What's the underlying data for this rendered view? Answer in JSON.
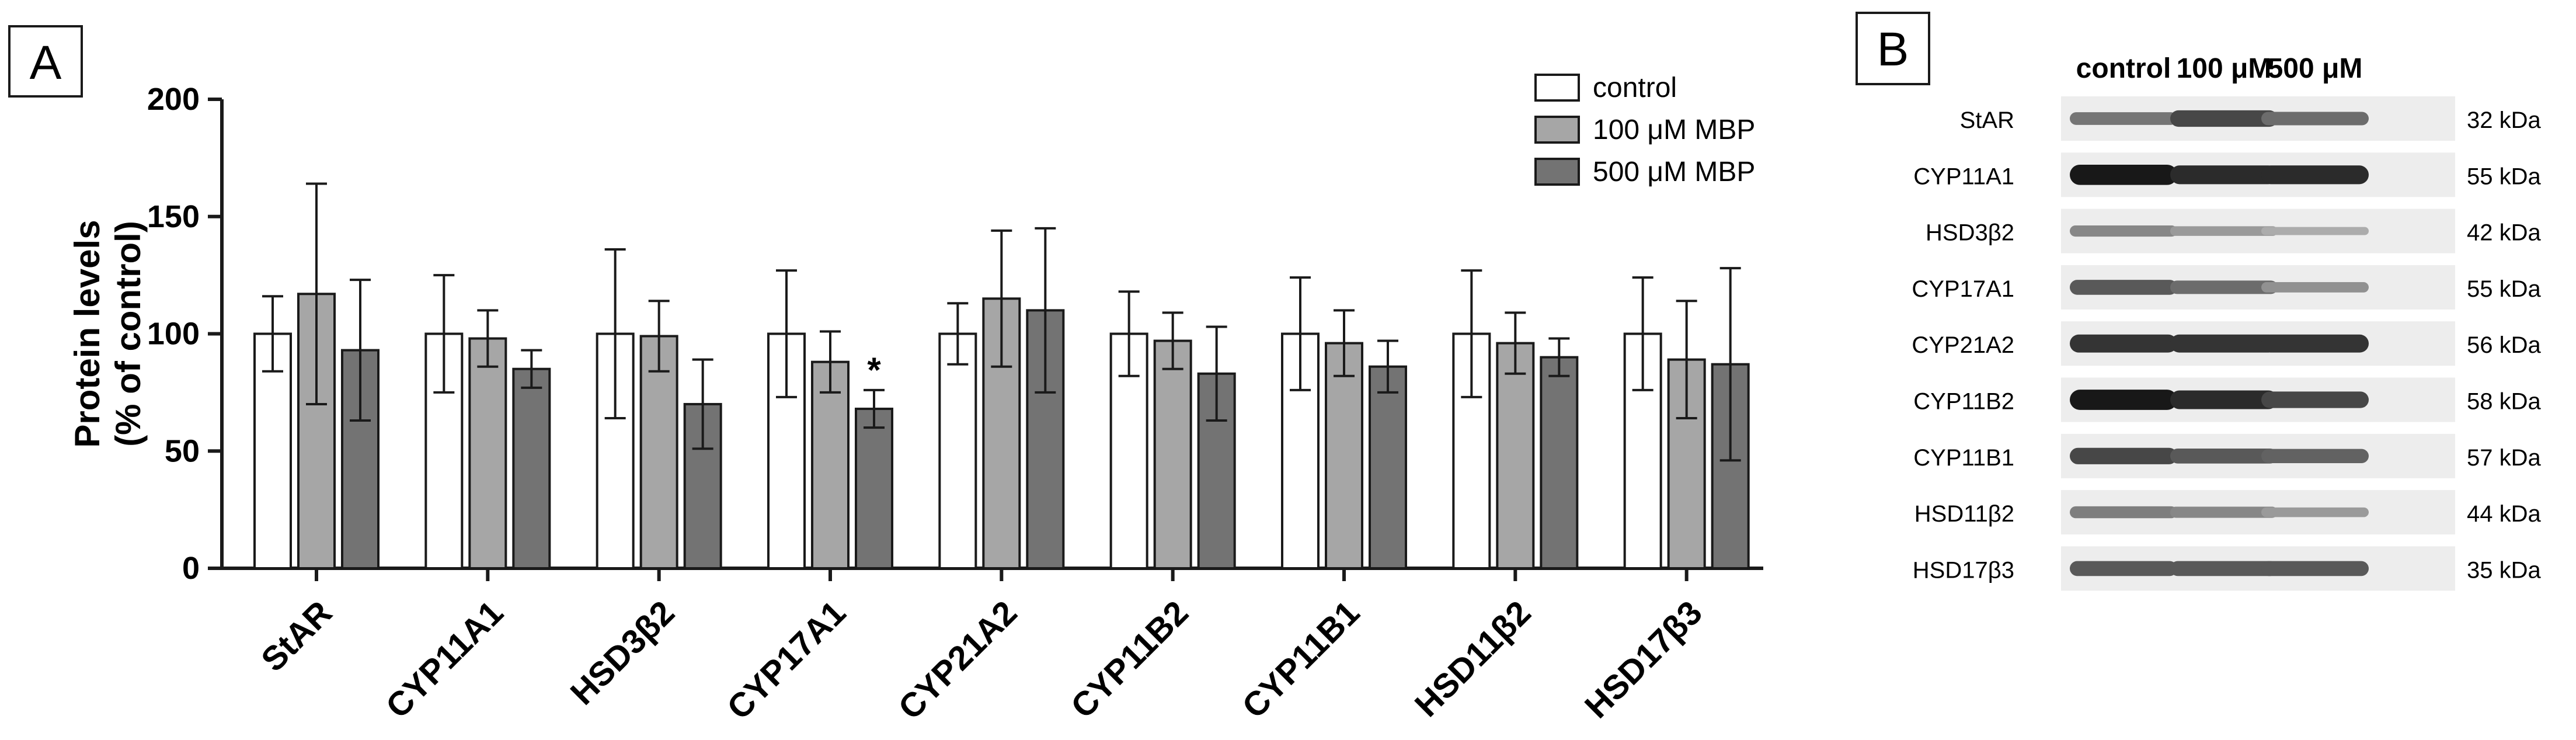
{
  "panel_a": {
    "label": "A",
    "chart_data": {
      "type": "bar",
      "title": "",
      "xlabel": "",
      "ylabel_line1": "Protein levels",
      "ylabel_line2": "(% of control)",
      "ylim": [
        0,
        200
      ],
      "yticks": [
        0,
        50,
        100,
        150,
        200
      ],
      "categories": [
        "StAR",
        "CYP11A1",
        "HSD3β2",
        "CYP17A1",
        "CYP21A2",
        "CYP11B2",
        "CYP11B1",
        "HSD11β2",
        "HSD17β3"
      ],
      "series": [
        {
          "name": "control",
          "color": "#ffffff",
          "values": [
            100,
            100,
            100,
            100,
            100,
            100,
            100,
            100,
            100
          ],
          "errors": [
            16,
            25,
            36,
            27,
            13,
            18,
            24,
            27,
            24
          ]
        },
        {
          "name": "100 μM MBP",
          "color": "#a6a6a6",
          "values": [
            117,
            98,
            99,
            88,
            115,
            97,
            96,
            96,
            89
          ],
          "errors": [
            47,
            12,
            15,
            13,
            29,
            12,
            14,
            13,
            25
          ]
        },
        {
          "name": "500 μM MBP",
          "color": "#737373",
          "values": [
            93,
            85,
            70,
            68,
            110,
            83,
            86,
            90,
            87
          ],
          "errors": [
            30,
            8,
            19,
            8,
            35,
            20,
            11,
            8,
            41
          ]
        }
      ],
      "annotations": [
        {
          "category": "CYP17A1",
          "series": "500 μM MBP",
          "text": "*"
        }
      ],
      "legend_position": "top-right"
    }
  },
  "panel_b": {
    "label": "B",
    "columns": [
      "control",
      "100 μM",
      "500 μM"
    ],
    "rows": [
      {
        "protein": "StAR",
        "size": "32 kDa"
      },
      {
        "protein": "CYP11A1",
        "size": "55 kDa"
      },
      {
        "protein": "HSD3β2",
        "size": "42 kDa"
      },
      {
        "protein": "CYP17A1",
        "size": "55 kDa"
      },
      {
        "protein": "CYP21A2",
        "size": "56 kDa"
      },
      {
        "protein": "CYP11B2",
        "size": "58 kDa"
      },
      {
        "protein": "CYP11B1",
        "size": "57 kDa"
      },
      {
        "protein": "HSD11β2",
        "size": "44 kDa"
      },
      {
        "protein": "HSD17β3",
        "size": "35 kDa"
      }
    ],
    "band_intensity": [
      [
        0.45,
        0.7,
        0.5
      ],
      [
        0.95,
        0.85,
        0.85
      ],
      [
        0.35,
        0.25,
        0.15
      ],
      [
        0.6,
        0.5,
        0.3
      ],
      [
        0.8,
        0.8,
        0.8
      ],
      [
        0.95,
        0.85,
        0.7
      ],
      [
        0.7,
        0.6,
        0.55
      ],
      [
        0.4,
        0.35,
        0.25
      ],
      [
        0.6,
        0.6,
        0.6
      ]
    ]
  }
}
